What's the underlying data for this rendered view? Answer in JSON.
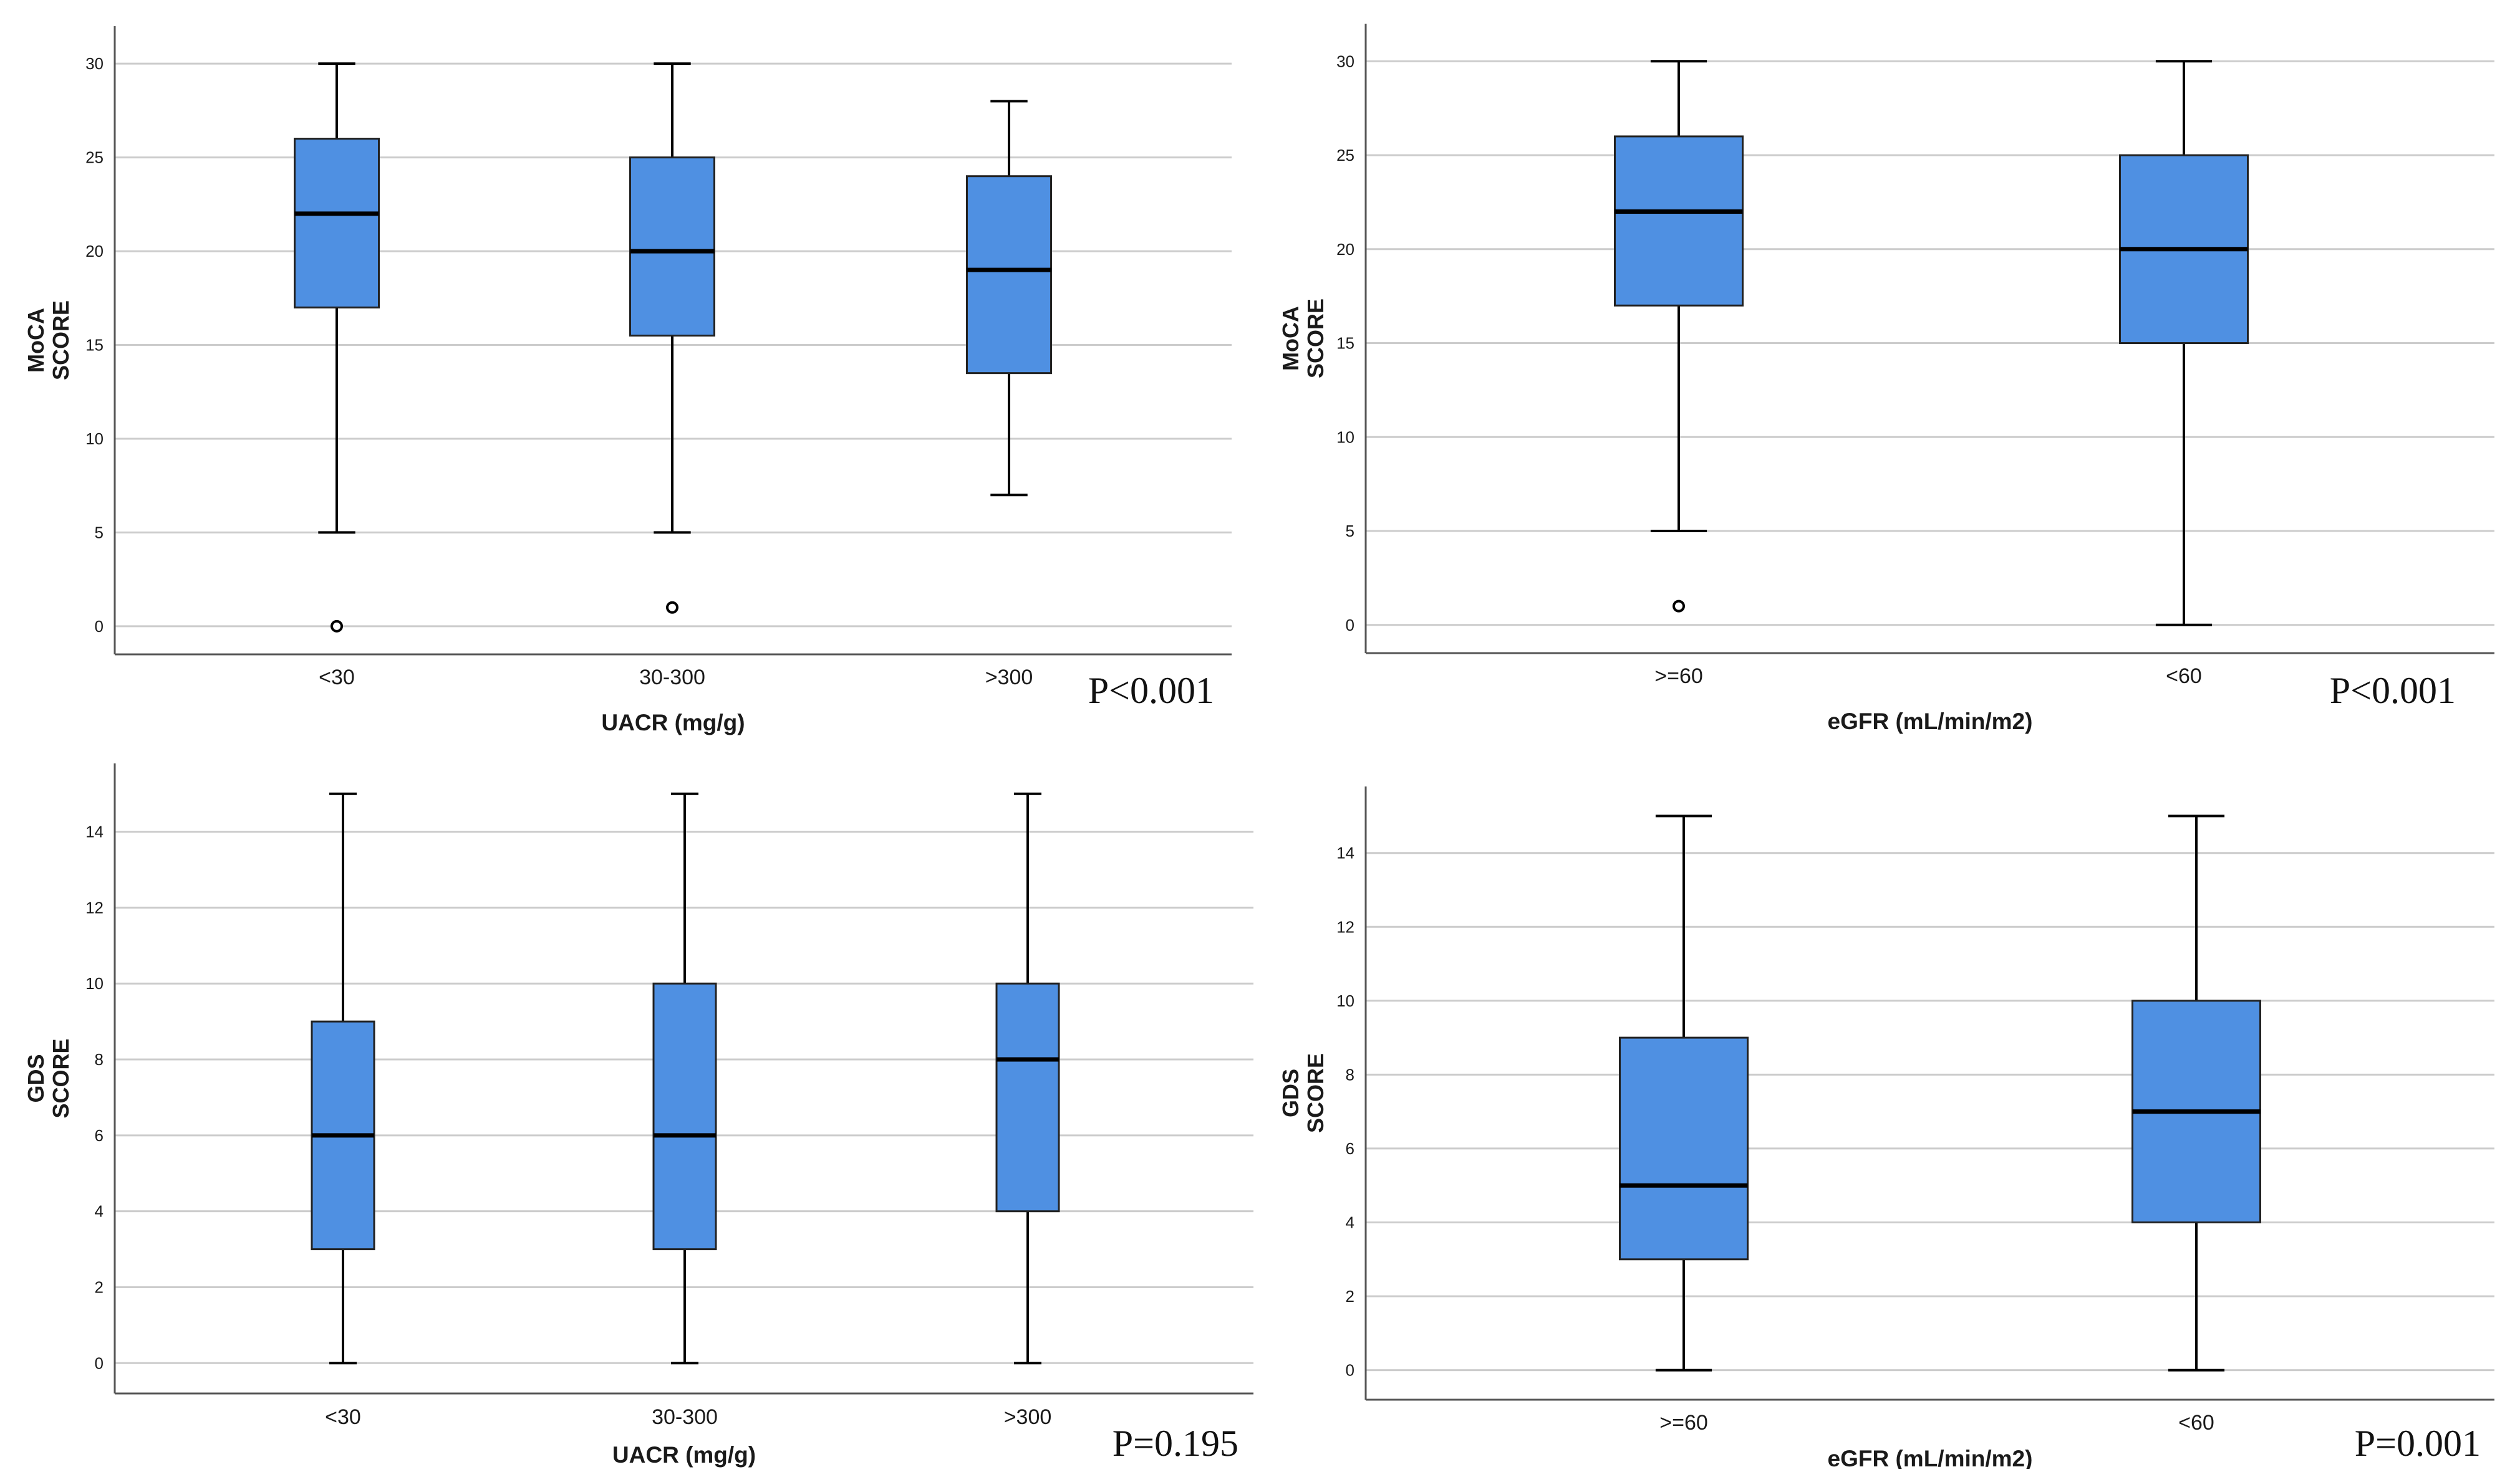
{
  "chart_data": [
    {
      "type": "boxplot",
      "ylabel_lines": [
        "MoCA",
        "SCORE"
      ],
      "xlabel": "UACR (mg/g)",
      "categories": [
        "<30",
        "30-300",
        ">300"
      ],
      "yticks": [
        0,
        5,
        10,
        15,
        20,
        25,
        30
      ],
      "ylim": [
        -1.5,
        32
      ],
      "boxes": [
        {
          "min": 5,
          "q1": 17,
          "median": 22,
          "q3": 26,
          "max": 30,
          "outliers": [
            0
          ]
        },
        {
          "min": 5,
          "q1": 15.5,
          "median": 20,
          "q3": 25,
          "max": 30,
          "outliers": [
            1
          ]
        },
        {
          "min": 7,
          "q1": 13.5,
          "median": 19,
          "q3": 24,
          "max": 28,
          "outliers": []
        }
      ],
      "p_value": "P<0.001",
      "box_color": "#4f90e2"
    },
    {
      "type": "boxplot",
      "ylabel_lines": [
        "MoCA",
        "SCORE"
      ],
      "xlabel": "eGFR (mL/min/m2)",
      "categories": [
        ">=60",
        "<60"
      ],
      "yticks": [
        0,
        5,
        10,
        15,
        20,
        25,
        30
      ],
      "ylim": [
        -1.5,
        32
      ],
      "boxes": [
        {
          "min": 5,
          "q1": 17,
          "median": 22,
          "q3": 26,
          "max": 30,
          "outliers": [
            1
          ]
        },
        {
          "min": 0,
          "q1": 15,
          "median": 20,
          "q3": 25,
          "max": 30,
          "outliers": []
        }
      ],
      "p_value": "P<0.001",
      "box_color": "#4f90e2"
    },
    {
      "type": "boxplot",
      "ylabel_lines": [
        "GDS",
        "SCORE"
      ],
      "xlabel": "UACR (mg/g)",
      "categories": [
        "<30",
        "30-300",
        ">300"
      ],
      "yticks": [
        0,
        2,
        4,
        6,
        8,
        10,
        12,
        14
      ],
      "ylim": [
        -0.8,
        15.8
      ],
      "boxes": [
        {
          "min": 0,
          "q1": 3,
          "median": 6,
          "q3": 9,
          "max": 15,
          "outliers": []
        },
        {
          "min": 0,
          "q1": 3,
          "median": 6,
          "q3": 10,
          "max": 15,
          "outliers": []
        },
        {
          "min": 0,
          "q1": 4,
          "median": 8,
          "q3": 10,
          "max": 15,
          "outliers": []
        }
      ],
      "p_value": "P=0.195",
      "box_color": "#4f90e2"
    },
    {
      "type": "boxplot",
      "ylabel_lines": [
        "GDS",
        "SCORE"
      ],
      "xlabel": "eGFR (mL/min/m2)",
      "categories": [
        ">=60",
        "<60"
      ],
      "yticks": [
        0,
        2,
        4,
        6,
        8,
        10,
        12,
        14
      ],
      "ylim": [
        -0.8,
        15.8
      ],
      "boxes": [
        {
          "min": 0,
          "q1": 3,
          "median": 5,
          "q3": 9,
          "max": 15,
          "outliers": []
        },
        {
          "min": 0,
          "q1": 4,
          "median": 7,
          "q3": 10,
          "max": 15,
          "outliers": []
        }
      ],
      "p_value": "P=0.001",
      "box_color": "#4f90e2"
    }
  ]
}
